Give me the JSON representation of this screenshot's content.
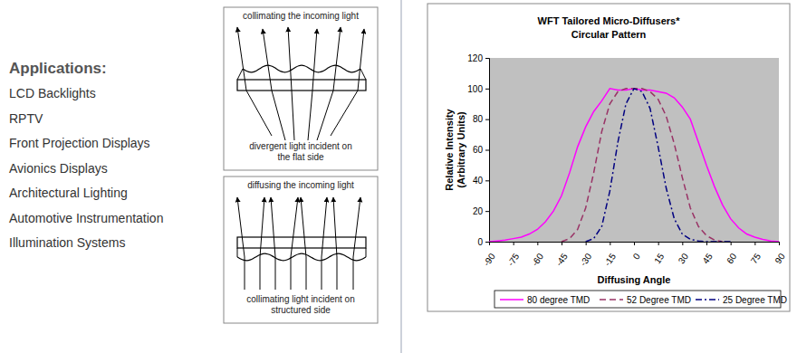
{
  "applications": {
    "heading": "Applications:",
    "items": [
      "LCD Backlights",
      "RPTV",
      "Front Projection Displays",
      "Avionics Displays",
      "Architectural Lighting",
      "Automotive Instrumentation",
      "Illumination Systems"
    ]
  },
  "diagrams": [
    {
      "caption_top": "collimating the incoming light",
      "caption_bottom": [
        "divergent light incident on",
        "the flat side"
      ]
    },
    {
      "caption_top": "diffusing the incoming light",
      "caption_bottom": [
        "collimating light incident on",
        "structured side"
      ]
    }
  ],
  "chart_data": {
    "type": "line",
    "title": "WFT Tailored Micro-Diffusers*",
    "subtitle": "Circular Pattern",
    "xlabel": "Diffusing Angle",
    "ylabel": "Relative Intensity\n(Arbitrary Units)",
    "x": [
      -90,
      -85,
      -80,
      -75,
      -70,
      -65,
      -60,
      -55,
      -50,
      -45,
      -40,
      -35,
      -30,
      -25,
      -20,
      -15,
      -10,
      -5,
      0,
      5,
      10,
      15,
      20,
      25,
      30,
      35,
      40,
      45,
      50,
      55,
      60,
      65,
      70,
      75,
      80,
      85,
      90
    ],
    "series": [
      {
        "name": "80 degree TMD",
        "color": "#ff00ff",
        "line_style": "solid",
        "values": [
          0,
          0.5,
          1,
          2,
          3,
          5,
          8,
          13,
          20,
          30,
          45,
          62,
          75,
          85,
          92,
          100,
          99,
          99,
          100,
          99,
          99,
          98,
          97,
          94,
          88,
          80,
          65,
          50,
          36,
          24,
          15,
          9,
          5,
          3,
          1.5,
          0.5,
          0
        ]
      },
      {
        "name": "52 Degree TMD",
        "color": "#993366",
        "line_style": "dashed",
        "values": [
          null,
          null,
          null,
          null,
          null,
          null,
          null,
          null,
          null,
          0,
          2,
          8,
          22,
          45,
          72,
          90,
          98,
          100,
          100,
          100,
          98,
          93,
          82,
          64,
          42,
          22,
          10,
          4,
          1,
          0,
          null,
          null,
          null,
          null,
          null,
          null,
          null
        ]
      },
      {
        "name": "25 Degree TMD",
        "color": "#000080",
        "line_style": "dashdot",
        "values": [
          null,
          null,
          null,
          null,
          null,
          null,
          null,
          null,
          null,
          null,
          null,
          null,
          0,
          2,
          10,
          33,
          65,
          90,
          100,
          98,
          87,
          62,
          35,
          15,
          5,
          1.5,
          0.5,
          0,
          0,
          0,
          0,
          null,
          null,
          null,
          null,
          null,
          null
        ]
      }
    ],
    "xlim": [
      -90,
      90
    ],
    "xticks": [
      -90,
      -75,
      -60,
      -45,
      -30,
      -15,
      0,
      15,
      30,
      45,
      60,
      75,
      90
    ],
    "ylim": [
      0,
      120
    ],
    "yticks": [
      0,
      20,
      40,
      60,
      80,
      100,
      120
    ],
    "grid": false,
    "legend": "bottom"
  }
}
